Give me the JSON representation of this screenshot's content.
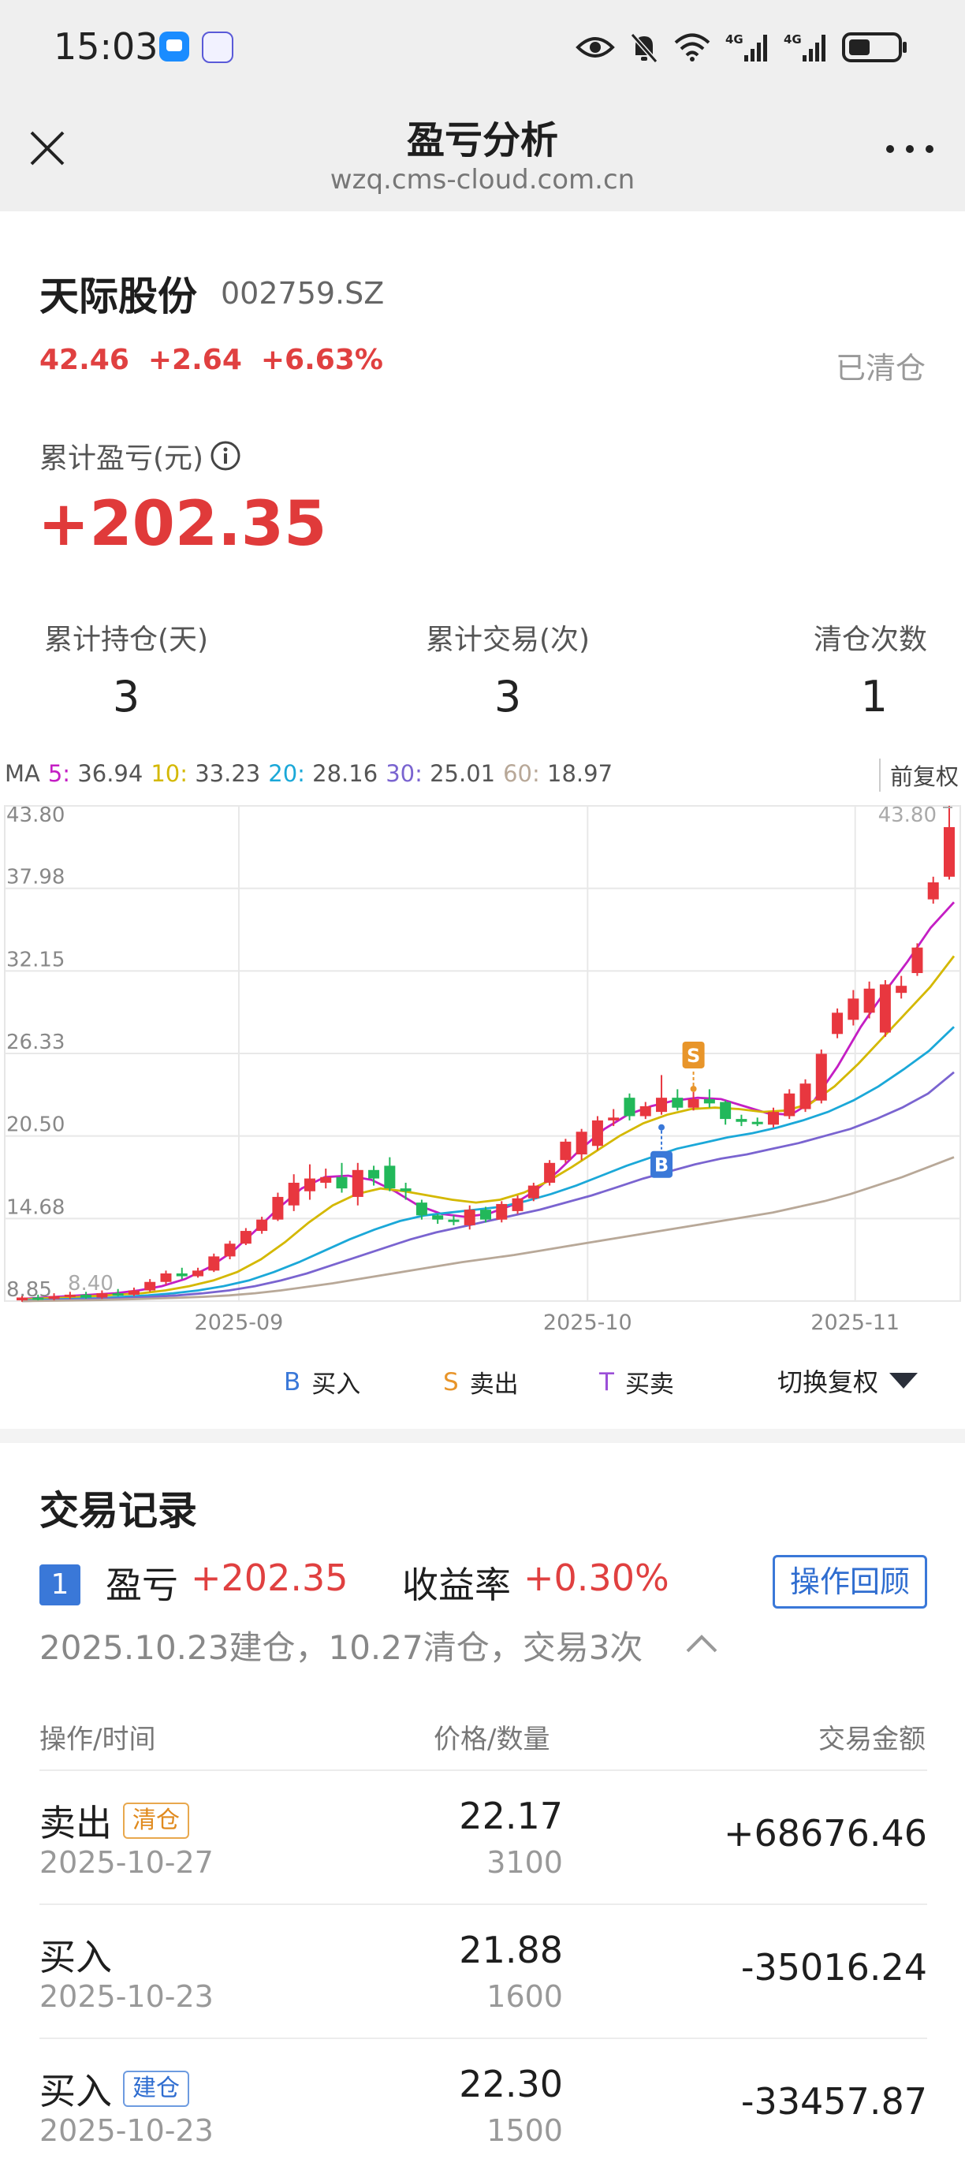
{
  "status_bar": {
    "time": "15:03",
    "icons": [
      "app-message-icon",
      "app-baidu-icon",
      "eye-icon",
      "mute-bell-icon",
      "wifi-icon",
      "signal-4g-icon",
      "signal-4g-icon",
      "battery-icon"
    ],
    "net1": "4G",
    "net2": "4G"
  },
  "nav": {
    "title": "盈亏分析",
    "url": "wzq.cms-cloud.com.cn"
  },
  "stock": {
    "name": "天际股份",
    "code": "002759.SZ",
    "price": "42.46",
    "change": "+2.64",
    "change_pct": "+6.63%",
    "position_status": "已清仓"
  },
  "pnl": {
    "label": "累计盈亏(元)",
    "value": "+202.35"
  },
  "stats": [
    {
      "label": "累计持仓(天)",
      "value": "3"
    },
    {
      "label": "累计交易(次)",
      "value": "3"
    },
    {
      "label": "清仓次数",
      "value": "1"
    }
  ],
  "ma": {
    "prefix": "MA",
    "items": [
      {
        "key": "5:",
        "value": "36.94",
        "color": "#c41ec4"
      },
      {
        "key": "10:",
        "value": "33.23",
        "color": "#d4b800"
      },
      {
        "key": "20:",
        "value": "28.16",
        "color": "#1ba8d8"
      },
      {
        "key": "30:",
        "value": "25.01",
        "color": "#7a64d0"
      },
      {
        "key": "60:",
        "value": "18.97",
        "color": "#b8a898"
      }
    ],
    "adjust_label": "前复权"
  },
  "chart_data": {
    "type": "candlestick",
    "y_ticks": [
      "43.80",
      "37.98",
      "32.15",
      "26.33",
      "20.50",
      "14.68",
      "8.85"
    ],
    "ylim": [
      8.85,
      43.8
    ],
    "x_ticks": [
      "2025-09",
      "2025-10",
      "2025-11"
    ],
    "max_label": "43.80",
    "min_label": "8.40",
    "candles": [
      [
        8.9,
        9.1,
        9.2,
        8.8
      ],
      [
        9.1,
        9.0,
        9.3,
        8.9
      ],
      [
        9.0,
        9.2,
        9.4,
        8.9
      ],
      [
        9.2,
        9.3,
        9.5,
        9.0
      ],
      [
        9.3,
        9.1,
        9.5,
        9.0
      ],
      [
        9.1,
        9.4,
        9.6,
        9.0
      ],
      [
        9.4,
        9.3,
        9.7,
        9.2
      ],
      [
        9.3,
        9.6,
        9.8,
        9.2
      ],
      [
        9.6,
        10.2,
        10.4,
        9.5
      ],
      [
        10.2,
        10.8,
        11.0,
        10.0
      ],
      [
        10.8,
        10.6,
        11.2,
        10.4
      ],
      [
        10.6,
        11.0,
        11.2,
        10.5
      ],
      [
        11.0,
        12.0,
        12.2,
        10.9
      ],
      [
        12.0,
        12.9,
        13.1,
        11.8
      ],
      [
        12.9,
        13.8,
        14.0,
        12.8
      ],
      [
        13.8,
        14.6,
        14.8,
        13.6
      ],
      [
        14.6,
        16.2,
        16.5,
        14.5
      ],
      [
        15.6,
        17.2,
        17.8,
        15.2
      ],
      [
        16.6,
        17.5,
        18.5,
        16.0
      ],
      [
        17.2,
        17.6,
        18.2,
        16.8
      ],
      [
        17.6,
        16.8,
        18.6,
        16.5
      ],
      [
        16.2,
        18.1,
        18.6,
        15.6
      ],
      [
        18.1,
        17.5,
        18.4,
        17.0
      ],
      [
        18.4,
        16.8,
        19.0,
        16.6
      ],
      [
        16.8,
        16.6,
        17.2,
        16.0
      ],
      [
        15.8,
        14.9,
        16.0,
        14.6
      ],
      [
        14.9,
        14.6,
        15.0,
        14.3
      ],
      [
        14.6,
        14.5,
        14.9,
        14.2
      ],
      [
        14.2,
        15.3,
        15.6,
        13.9
      ],
      [
        15.3,
        14.6,
        15.5,
        14.4
      ],
      [
        14.6,
        15.7,
        15.9,
        14.4
      ],
      [
        15.2,
        16.1,
        16.3,
        15.0
      ],
      [
        16.1,
        17.0,
        17.2,
        15.9
      ],
      [
        17.2,
        18.6,
        18.8,
        17.0
      ],
      [
        18.8,
        20.1,
        20.3,
        18.6
      ],
      [
        19.2,
        20.8,
        21.0,
        18.8
      ],
      [
        19.8,
        21.6,
        21.9,
        19.5
      ],
      [
        21.6,
        21.8,
        22.4,
        21.2
      ],
      [
        23.2,
        21.9,
        23.5,
        21.6
      ],
      [
        21.9,
        22.6,
        22.9,
        21.7
      ],
      [
        22.2,
        23.2,
        24.8,
        22.0
      ],
      [
        23.2,
        22.5,
        23.8,
        22.3
      ],
      [
        22.5,
        23.1,
        23.6,
        22.3
      ],
      [
        23.1,
        22.8,
        23.8,
        22.5
      ],
      [
        22.9,
        21.7,
        23.0,
        21.3
      ],
      [
        21.7,
        21.5,
        22.0,
        21.2
      ],
      [
        21.5,
        21.4,
        21.8,
        21.2
      ],
      [
        21.3,
        22.2,
        22.5,
        21.1
      ],
      [
        21.9,
        23.5,
        23.8,
        21.7
      ],
      [
        22.4,
        24.2,
        24.5,
        22.2
      ],
      [
        23.0,
        26.3,
        26.6,
        22.8
      ],
      [
        27.7,
        29.2,
        29.5,
        27.4
      ],
      [
        28.7,
        30.2,
        30.8,
        28.3
      ],
      [
        29.2,
        30.9,
        31.4,
        28.8
      ],
      [
        27.8,
        31.2,
        31.5,
        27.5
      ],
      [
        30.6,
        31.1,
        31.8,
        30.2
      ],
      [
        32.0,
        33.8,
        34.1,
        31.8
      ],
      [
        37.2,
        38.4,
        38.8,
        36.9
      ],
      [
        38.8,
        42.3,
        43.8,
        38.6
      ]
    ],
    "ma_series": [
      {
        "name": "MA5",
        "color": "#c41ec4",
        "values": [
          9.0,
          9.1,
          9.2,
          9.3,
          9.4,
          9.6,
          9.9,
          10.4,
          11.2,
          12.3,
          13.8,
          15.4,
          16.8,
          17.6,
          17.7,
          17.4,
          16.6,
          15.6,
          15.0,
          14.8,
          15.0,
          15.6,
          16.6,
          18.0,
          19.6,
          21.0,
          22.0,
          22.6,
          23.0,
          23.2,
          23.1,
          22.6,
          22.1,
          22.0,
          23.0,
          25.4,
          28.2,
          30.6,
          32.8,
          35.2,
          37.0
        ]
      },
      {
        "name": "MA10",
        "color": "#d4b800",
        "values": [
          8.95,
          9.05,
          9.1,
          9.2,
          9.3,
          9.4,
          9.6,
          9.9,
          10.3,
          10.9,
          11.8,
          13.0,
          14.4,
          15.6,
          16.4,
          16.8,
          16.6,
          16.3,
          16.0,
          15.8,
          16.0,
          16.5,
          17.3,
          18.3,
          19.4,
          20.5,
          21.4,
          22.0,
          22.4,
          22.5,
          22.4,
          22.2,
          22.3,
          22.8,
          24.0,
          25.6,
          27.4,
          29.2,
          31.0,
          33.2
        ]
      },
      {
        "name": "MA20",
        "color": "#1ba8d8",
        "values": [
          8.9,
          8.95,
          9.0,
          9.05,
          9.15,
          9.25,
          9.4,
          9.6,
          9.9,
          10.3,
          10.9,
          11.6,
          12.4,
          13.2,
          13.9,
          14.5,
          14.9,
          15.1,
          15.3,
          15.5,
          15.9,
          16.4,
          17.0,
          17.7,
          18.4,
          19.0,
          19.6,
          20.0,
          20.4,
          20.7,
          21.1,
          21.6,
          22.2,
          23.0,
          24.0,
          25.2,
          26.5,
          28.2
        ]
      },
      {
        "name": "MA30",
        "color": "#7a64d0",
        "values": [
          8.85,
          8.9,
          8.95,
          9.0,
          9.05,
          9.15,
          9.25,
          9.4,
          9.6,
          9.9,
          10.3,
          10.8,
          11.4,
          12.0,
          12.6,
          13.2,
          13.7,
          14.1,
          14.5,
          14.9,
          15.3,
          15.8,
          16.3,
          16.9,
          17.5,
          18.0,
          18.5,
          18.9,
          19.2,
          19.6,
          20.0,
          20.5,
          21.0,
          21.7,
          22.5,
          23.5,
          25.0
        ]
      },
      {
        "name": "MA60",
        "color": "#b8a898",
        "values": [
          8.85,
          8.87,
          8.9,
          8.93,
          8.97,
          9.02,
          9.08,
          9.15,
          9.25,
          9.4,
          9.6,
          9.85,
          10.1,
          10.4,
          10.7,
          11.0,
          11.3,
          11.6,
          11.85,
          12.1,
          12.4,
          12.7,
          13.0,
          13.3,
          13.6,
          13.9,
          14.2,
          14.5,
          14.8,
          15.1,
          15.5,
          15.9,
          16.4,
          17.0,
          17.6,
          18.3,
          19.0
        ]
      }
    ],
    "markers": [
      {
        "label": "S",
        "candle": 42,
        "color": "#e8952a"
      },
      {
        "label": "B",
        "candle": 40,
        "color": "#3a78d8"
      }
    ]
  },
  "chart_legend": {
    "buy_key": "B",
    "buy_label": "买入",
    "sell_key": "S",
    "sell_label": "卖出",
    "both_key": "T",
    "both_label": "买卖",
    "switch_label": "切换复权"
  },
  "records": {
    "title": "交易记录",
    "index": "1",
    "pnl_label": "盈亏",
    "pnl_value": "+202.35",
    "rate_label": "收益率",
    "rate_value": "+0.30%",
    "review_button": "操作回顾",
    "summary": "2025.10.23建仓，10.27清仓，交易3次",
    "columns": [
      "操作/时间",
      "价格/数量",
      "交易金额"
    ],
    "rows": [
      {
        "type": "卖出",
        "tag": "清仓",
        "date": "2025-10-27",
        "price": "22.17",
        "qty": "3100",
        "amount": "+68676.46"
      },
      {
        "type": "买入",
        "tag": "",
        "date": "2025-10-23",
        "price": "21.88",
        "qty": "1600",
        "amount": "-35016.24"
      },
      {
        "type": "买入",
        "tag": "建仓",
        "date": "2025-10-23",
        "price": "22.30",
        "qty": "1500",
        "amount": "-33457.87"
      }
    ]
  }
}
